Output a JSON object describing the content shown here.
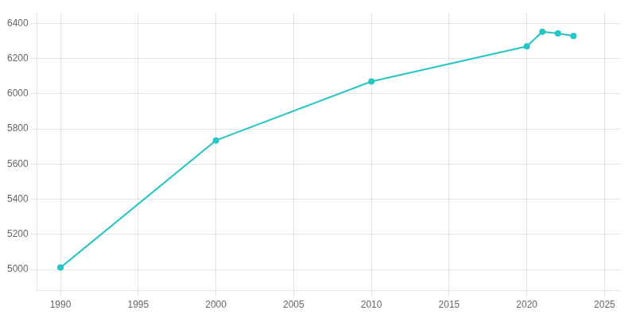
{
  "chart_data": {
    "type": "line",
    "x": [
      1990,
      2000,
      2010,
      2020,
      2021,
      2022,
      2023
    ],
    "values": [
      5011,
      5734,
      6069,
      6269,
      6352,
      6342,
      6328
    ],
    "color": "#29C5C5",
    "marker": "circle",
    "xlim": [
      1988.5,
      2026
    ],
    "ylim": [
      4880,
      6460
    ],
    "xticks": [
      1990,
      1995,
      2000,
      2005,
      2010,
      2015,
      2020,
      2025
    ],
    "yticks": [
      5000,
      5200,
      5400,
      5600,
      5800,
      6000,
      6200,
      6400
    ],
    "grid": true
  }
}
